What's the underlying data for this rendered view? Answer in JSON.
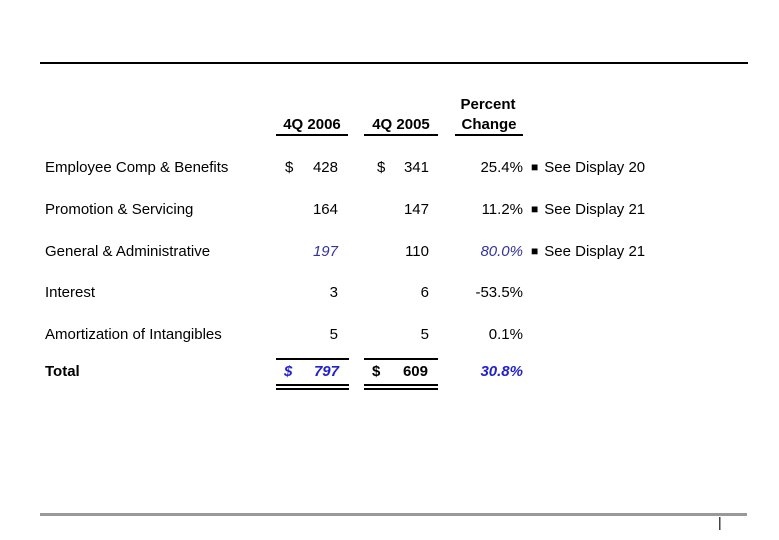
{
  "page": {
    "page_marker": "|"
  },
  "table": {
    "headers": {
      "col_2006": "4Q 2006",
      "col_2005": "4Q 2005",
      "pct_line1": "Percent",
      "pct_line2": "Change"
    },
    "bullet": "■",
    "rows": [
      {
        "label": "Employee Comp & Benefits",
        "dollar1": "$",
        "v2006": "428",
        "dollar2": "$",
        "v2005": "341",
        "pct": "25.4%",
        "note": "See Display 20"
      },
      {
        "label": "Promotion & Servicing",
        "v2006": "164",
        "v2005": "147",
        "pct": "11.2%",
        "note": "See Display 21"
      },
      {
        "label": "General & Administrative",
        "v2006": "197",
        "v2005": "110",
        "pct": "80.0%",
        "note": "See Display 21"
      },
      {
        "label": "Interest",
        "v2006": "3",
        "v2005": "6",
        "pct": "-53.5%"
      },
      {
        "label": "Amortization of Intangibles",
        "v2006": "5",
        "v2005": "5",
        "pct": "0.1%"
      }
    ],
    "total": {
      "label": "Total",
      "dollar1": "$",
      "v2006": "797",
      "dollar2": "$",
      "v2005": "609",
      "pct": "30.8%"
    }
  },
  "colors": {
    "highlight_blue_italic": "#333399",
    "total_blue": "#2222cc",
    "bottom_rule_gray": "#999999",
    "top_rule_black": "#000000"
  }
}
